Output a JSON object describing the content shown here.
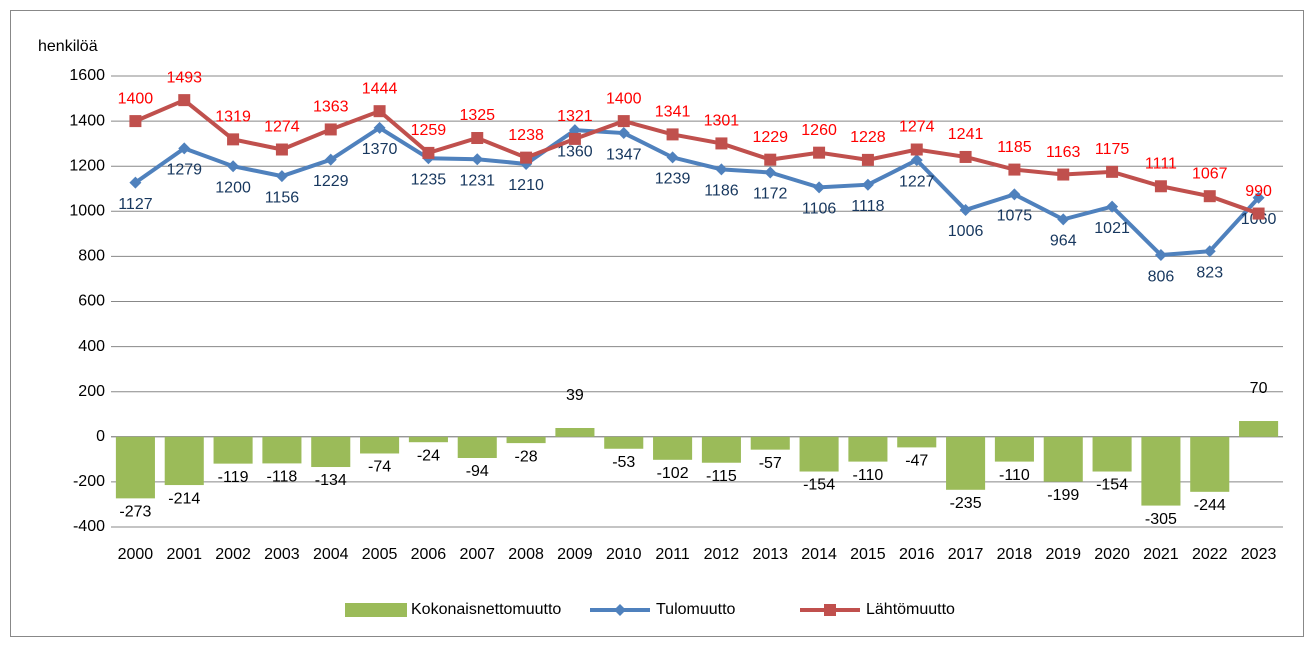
{
  "chart_data": {
    "type": "bar",
    "ylabel": "henkilöä",
    "categories": [
      "2000",
      "2001",
      "2002",
      "2003",
      "2004",
      "2005",
      "2006",
      "2007",
      "2008",
      "2009",
      "2010",
      "2011",
      "2012",
      "2013",
      "2014",
      "2015",
      "2016",
      "2017",
      "2018",
      "2019",
      "2020",
      "2021",
      "2022",
      "2023"
    ],
    "series": [
      {
        "name": "Kokonaisnettomuutto",
        "type": "bar",
        "color": "#9bbb59",
        "label_color": "#000000",
        "values": [
          -273,
          -214,
          -119,
          -118,
          -134,
          -74,
          -24,
          -94,
          -28,
          39,
          -53,
          -102,
          -115,
          -57,
          -154,
          -110,
          -47,
          -235,
          -110,
          -199,
          -154,
          -305,
          -244,
          70
        ]
      },
      {
        "name": "Tulomuutto",
        "type": "line",
        "marker": "diamond",
        "color": "#4f81bd",
        "label_color": "#17375e",
        "values": [
          1127,
          1279,
          1200,
          1156,
          1229,
          1370,
          1235,
          1231,
          1210,
          1360,
          1347,
          1239,
          1186,
          1172,
          1106,
          1118,
          1227,
          1006,
          1075,
          964,
          1021,
          806,
          823,
          1060
        ]
      },
      {
        "name": "Lähtömuutto",
        "type": "line",
        "marker": "square",
        "color": "#c0504d",
        "label_color": "#ff0000",
        "values": [
          1400,
          1493,
          1319,
          1274,
          1363,
          1444,
          1259,
          1325,
          1238,
          1321,
          1400,
          1341,
          1301,
          1229,
          1260,
          1228,
          1274,
          1241,
          1185,
          1163,
          1175,
          1111,
          1067,
          990
        ]
      }
    ],
    "ylim": [
      -400,
      1600
    ],
    "yticks": [
      -400,
      -200,
      0,
      200,
      400,
      600,
      800,
      1000,
      1200,
      1400,
      1600
    ],
    "grid": true,
    "legend": "bottom"
  }
}
